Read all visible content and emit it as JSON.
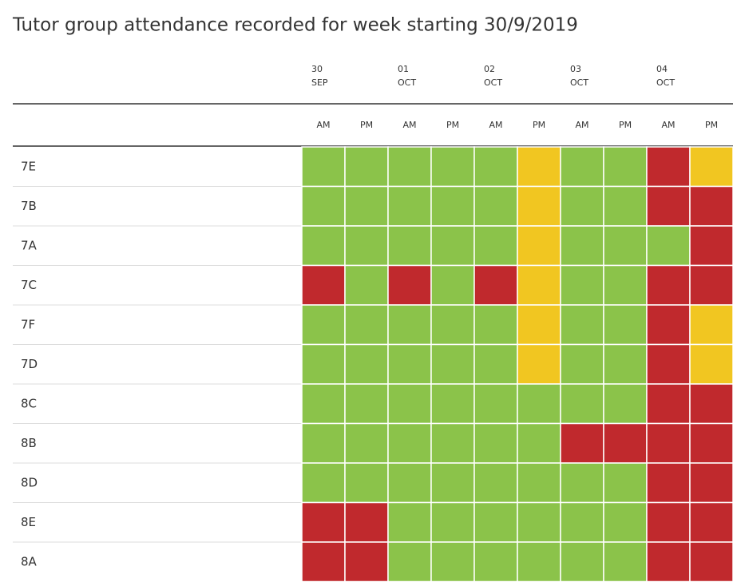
{
  "header": {
    "title": "Tutor group attendance recorded for week starting 30/9/2019"
  },
  "table": {
    "days": [
      {
        "day": "30",
        "month": "SEP"
      },
      {
        "day": "01",
        "month": "OCT"
      },
      {
        "day": "02",
        "month": "OCT"
      },
      {
        "day": "03",
        "month": "OCT"
      },
      {
        "day": "04",
        "month": "OCT"
      }
    ],
    "sessions": [
      "AM",
      "PM",
      "AM",
      "PM",
      "AM",
      "PM",
      "AM",
      "PM",
      "AM",
      "PM"
    ],
    "rows": [
      {
        "label": "7E",
        "cells": [
          "#8bc34a",
          "#8bc34a",
          "#8bc34a",
          "#8bc34a",
          "#8bc34a",
          "#f1c621",
          "#8bc34a",
          "#8bc34a",
          "#c0292d",
          "#f1c621"
        ]
      },
      {
        "label": "7B",
        "cells": [
          "#8bc34a",
          "#8bc34a",
          "#8bc34a",
          "#8bc34a",
          "#8bc34a",
          "#f1c621",
          "#8bc34a",
          "#8bc34a",
          "#c0292d",
          "#c0292d"
        ]
      },
      {
        "label": "7A",
        "cells": [
          "#8bc34a",
          "#8bc34a",
          "#8bc34a",
          "#8bc34a",
          "#8bc34a",
          "#f1c621",
          "#8bc34a",
          "#8bc34a",
          "#8bc34a",
          "#c0292d"
        ]
      },
      {
        "label": "7C",
        "cells": [
          "#c0292d",
          "#8bc34a",
          "#c0292d",
          "#8bc34a",
          "#c0292d",
          "#f1c621",
          "#8bc34a",
          "#8bc34a",
          "#c0292d",
          "#c0292d"
        ]
      },
      {
        "label": "7F",
        "cells": [
          "#8bc34a",
          "#8bc34a",
          "#8bc34a",
          "#8bc34a",
          "#8bc34a",
          "#f1c621",
          "#8bc34a",
          "#8bc34a",
          "#c0292d",
          "#f1c621"
        ]
      },
      {
        "label": "7D",
        "cells": [
          "#8bc34a",
          "#8bc34a",
          "#8bc34a",
          "#8bc34a",
          "#8bc34a",
          "#f1c621",
          "#8bc34a",
          "#8bc34a",
          "#c0292d",
          "#f1c621"
        ]
      },
      {
        "label": "8C",
        "cells": [
          "#8bc34a",
          "#8bc34a",
          "#8bc34a",
          "#8bc34a",
          "#8bc34a",
          "#8bc34a",
          "#8bc34a",
          "#8bc34a",
          "#c0292d",
          "#c0292d"
        ]
      },
      {
        "label": "8B",
        "cells": [
          "#8bc34a",
          "#8bc34a",
          "#8bc34a",
          "#8bc34a",
          "#8bc34a",
          "#8bc34a",
          "#c0292d",
          "#c0292d",
          "#c0292d",
          "#c0292d"
        ]
      },
      {
        "label": "8D",
        "cells": [
          "#8bc34a",
          "#8bc34a",
          "#8bc34a",
          "#8bc34a",
          "#8bc34a",
          "#8bc34a",
          "#8bc34a",
          "#8bc34a",
          "#c0292d",
          "#c0292d"
        ]
      },
      {
        "label": "8E",
        "cells": [
          "#c0292d",
          "#c0292d",
          "#8bc34a",
          "#8bc34a",
          "#8bc34a",
          "#8bc34a",
          "#8bc34a",
          "#8bc34a",
          "#c0292d",
          "#c0292d"
        ]
      },
      {
        "label": "8A",
        "cells": [
          "#c0292d",
          "#c0292d",
          "#8bc34a",
          "#8bc34a",
          "#8bc34a",
          "#8bc34a",
          "#8bc34a",
          "#8bc34a",
          "#c0292d",
          "#c0292d"
        ]
      }
    ]
  }
}
